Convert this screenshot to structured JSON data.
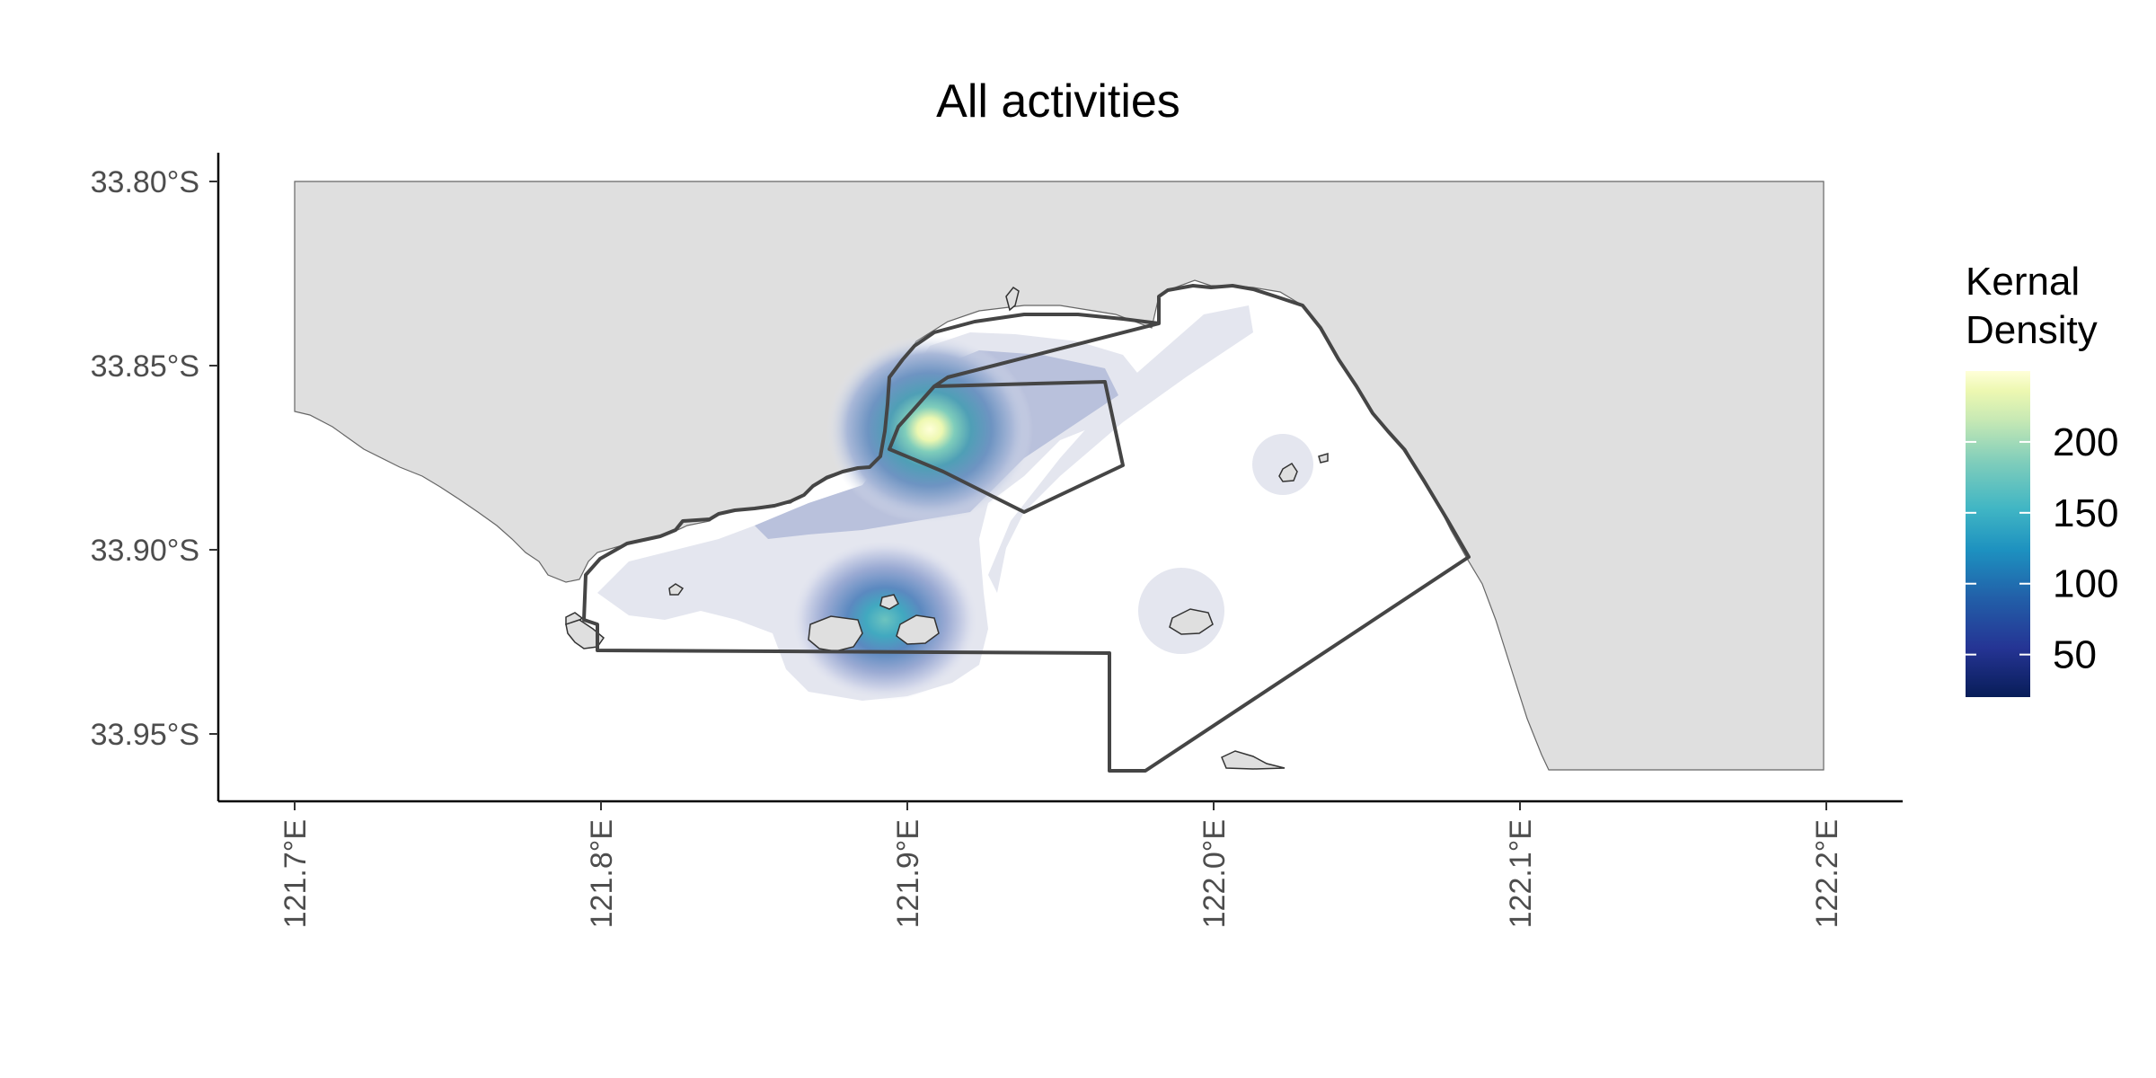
{
  "title": "All activities",
  "y_ticks": [
    {
      "lat": -33.8,
      "label": "33.80°S"
    },
    {
      "lat": -33.85,
      "label": "33.85°S"
    },
    {
      "lat": -33.9,
      "label": "33.90°S"
    },
    {
      "lat": -33.95,
      "label": "33.95°S"
    }
  ],
  "x_ticks": [
    {
      "lon": 121.7,
      "label": "121.7°E"
    },
    {
      "lon": 121.8,
      "label": "121.8°E"
    },
    {
      "lon": 121.9,
      "label": "121.9°E"
    },
    {
      "lon": 122.0,
      "label": "122.0°E"
    },
    {
      "lon": 122.1,
      "label": "122.1°E"
    },
    {
      "lon": 122.2,
      "label": "122.2°E"
    }
  ],
  "legend": {
    "title_line1": "Kernal",
    "title_line2": "Density",
    "min": 20,
    "max": 250,
    "ticks": [
      {
        "value": 50,
        "label": "50"
      },
      {
        "value": 100,
        "label": "100"
      },
      {
        "value": 150,
        "label": "150"
      },
      {
        "value": 200,
        "label": "200"
      }
    ],
    "colors": [
      "#081d58",
      "#253494",
      "#225ea8",
      "#1d91c0",
      "#41b6c4",
      "#7fcdbb",
      "#c7e9b4",
      "#edf8b1",
      "#ffffd9"
    ]
  },
  "density_hotspots": [
    {
      "lon": 121.905,
      "lat": -33.867,
      "peak": 245
    },
    {
      "lon": 121.9,
      "lat": -33.918,
      "peak": 165
    }
  ],
  "chart_data": {
    "type": "heatmap",
    "title": "All activities",
    "xlabel": "",
    "ylabel": "",
    "xlim": [
      121.7,
      122.2
    ],
    "ylim": [
      -33.96,
      -33.8
    ],
    "legend_title": "Kernal Density",
    "legend_placement": "right",
    "value_range": [
      20,
      250
    ],
    "grid": false
  }
}
